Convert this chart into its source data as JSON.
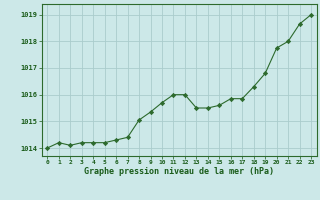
{
  "x": [
    0,
    1,
    2,
    3,
    4,
    5,
    6,
    7,
    8,
    9,
    10,
    11,
    12,
    13,
    14,
    15,
    16,
    17,
    18,
    19,
    20,
    21,
    22,
    23
  ],
  "y": [
    1014.0,
    1014.2,
    1014.1,
    1014.2,
    1014.2,
    1014.2,
    1014.3,
    1014.4,
    1015.05,
    1015.35,
    1015.7,
    1016.0,
    1016.0,
    1015.5,
    1015.5,
    1015.6,
    1015.85,
    1015.85,
    1016.3,
    1016.8,
    1017.75,
    1018.0,
    1018.65,
    1019.0
  ],
  "line_color": "#2d6a2d",
  "marker": "D",
  "marker_size": 2.2,
  "bg_color": "#cce8e8",
  "grid_color": "#aacccc",
  "ylabel_ticks": [
    1014,
    1015,
    1016,
    1017,
    1018,
    1019
  ],
  "xlabel_label": "Graphe pression niveau de la mer (hPa)",
  "tick_color": "#1a5c1a",
  "spine_color": "#2d6a2d",
  "xlim": [
    -0.5,
    23.5
  ],
  "ylim": [
    1013.7,
    1019.4
  ]
}
